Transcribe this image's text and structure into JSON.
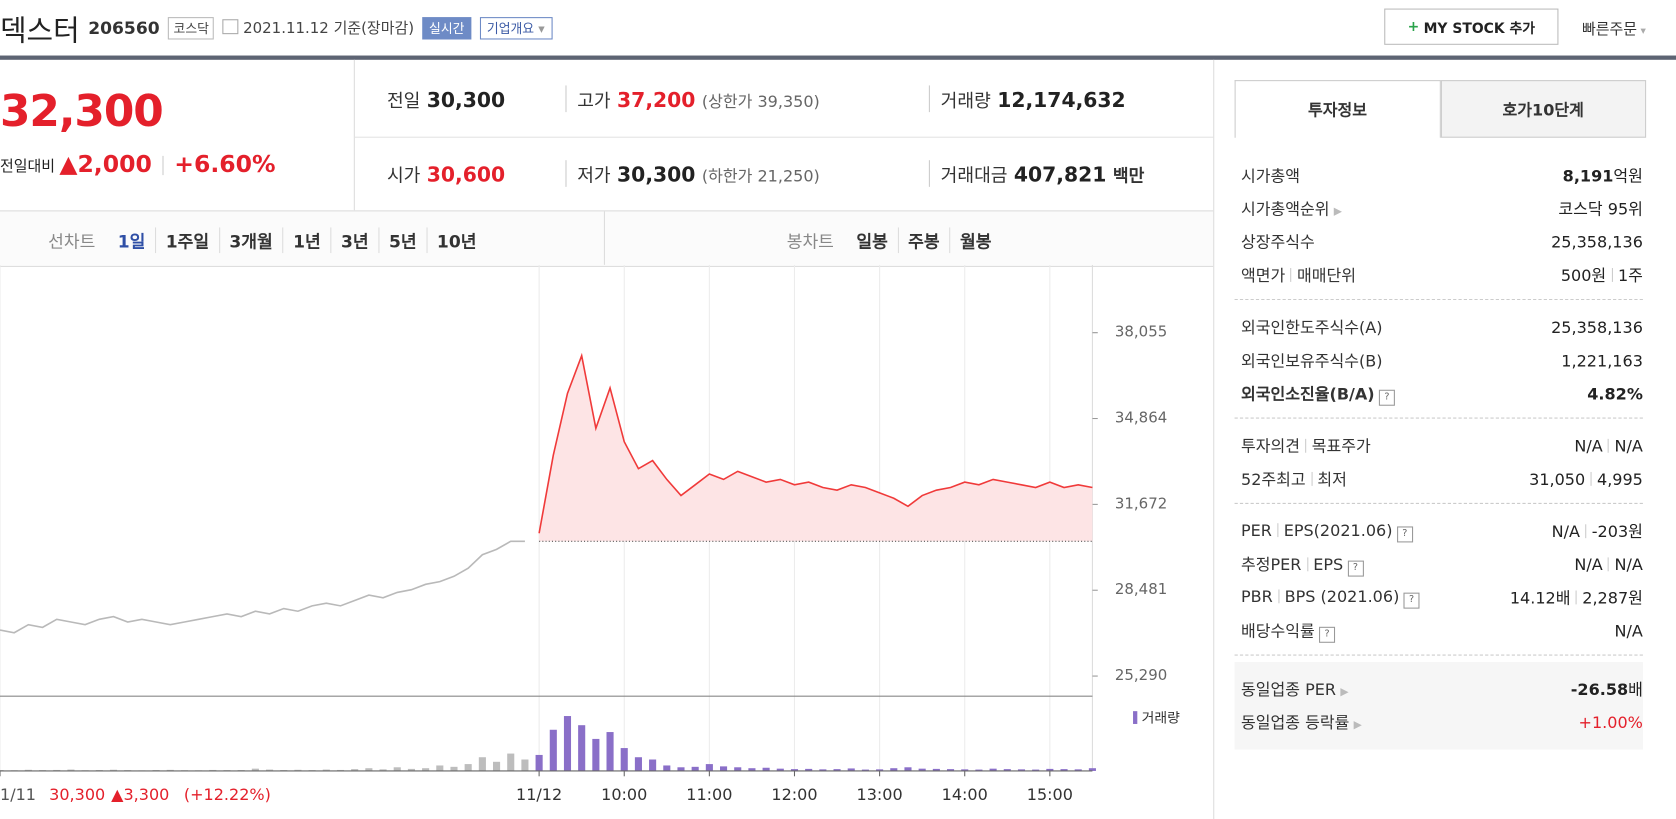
{
  "header": {
    "name": "덱스터",
    "code": "206560",
    "market": "코스닥",
    "date": "2021.11.12 기준(장마감)",
    "realtime": "실시간",
    "company": "기업개요",
    "mystock": "MY STOCK 추가",
    "quick": "빠른주문"
  },
  "price": {
    "current": "32,300",
    "change_label": "전일대비",
    "change": "▲2,000",
    "change_pct": "+6.60%"
  },
  "summary": {
    "items": [
      {
        "label": "전일",
        "value": "30,300"
      },
      {
        "label": "고가",
        "value": "37,200",
        "sub": "(상한가 39,350)",
        "color": "#e4202b"
      },
      {
        "label": "거래량",
        "value": "12,174,632"
      },
      {
        "label": "시가",
        "value": "30,600",
        "color": "#e4202b"
      },
      {
        "label": "저가",
        "value": "30,300",
        "sub": "(하한가 21,250)"
      },
      {
        "label": "거래대금",
        "value": "407,821",
        "unit": "백만"
      }
    ]
  },
  "tabs": {
    "line_label": "선차트",
    "periods": [
      "1일",
      "1주일",
      "3개월",
      "1년",
      "3년",
      "5년",
      "10년"
    ],
    "candle_label": "봉차트",
    "candles": [
      "일봉",
      "주봉",
      "월봉"
    ]
  },
  "chart": {
    "type": "line",
    "categories": [
      "1/11",
      null,
      null,
      null,
      null,
      null,
      null,
      null,
      null,
      null,
      null,
      null,
      null,
      null,
      null,
      null,
      null,
      null,
      null,
      null,
      null,
      null,
      null,
      null,
      null,
      null,
      null,
      null,
      null,
      null,
      null,
      null,
      null,
      null,
      null,
      null,
      null,
      null,
      "11/12",
      null,
      null,
      null,
      null,
      null,
      "10:00",
      null,
      null,
      null,
      null,
      null,
      "11:00",
      null,
      null,
      null,
      null,
      null,
      "12:00",
      null,
      null,
      null,
      null,
      null,
      "13:00",
      null,
      null,
      null,
      null,
      null,
      "14:00",
      null,
      null,
      null,
      null,
      null,
      "15:00",
      null,
      null,
      null
    ],
    "series": [
      {
        "color": "#b9b9b9",
        "values": [
          27000,
          26900,
          27200,
          27100,
          27400,
          27300,
          27200,
          27400,
          27500,
          27300,
          27400,
          27300,
          27200,
          27300,
          27400,
          27500,
          27600,
          27500,
          27700,
          27600,
          27800,
          27700,
          27900,
          28000,
          27900,
          28100,
          28300,
          28200,
          28400,
          28500,
          28700,
          28800,
          29000,
          29300,
          29800,
          30000,
          30300,
          30300,
          null,
          null,
          null,
          null,
          null,
          null,
          null,
          null,
          null,
          null,
          null,
          null,
          null,
          null,
          null,
          null,
          null,
          null,
          null,
          null,
          null,
          null,
          null,
          null,
          null,
          null,
          null,
          null,
          null,
          null,
          null,
          null,
          null,
          null,
          null,
          null,
          null,
          null,
          null,
          null
        ]
      },
      {
        "color": "#f03a3a",
        "values": [
          null,
          null,
          null,
          null,
          null,
          null,
          null,
          null,
          null,
          null,
          null,
          null,
          null,
          null,
          null,
          null,
          null,
          null,
          null,
          null,
          null,
          null,
          null,
          null,
          null,
          null,
          null,
          null,
          null,
          null,
          null,
          null,
          null,
          null,
          null,
          null,
          null,
          null,
          30600,
          33500,
          35800,
          37200,
          34500,
          36000,
          34000,
          33000,
          33300,
          32600,
          32000,
          32400,
          32800,
          32600,
          32900,
          32700,
          32500,
          32600,
          32400,
          32500,
          32300,
          32200,
          32400,
          32300,
          32100,
          31900,
          31600,
          32000,
          32200,
          32300,
          32500,
          32400,
          32600,
          32500,
          32400,
          32300,
          32500,
          32300,
          32400,
          32300
        ]
      }
    ],
    "base": 30300,
    "ylim": [
      24700,
      40300
    ],
    "yticks": [
      {
        "value": 38055,
        "label": "38,055"
      },
      {
        "value": 34864,
        "label": "34,864"
      },
      {
        "value": 31672,
        "label": "31,672"
      },
      {
        "value": 28481,
        "label": "28,481"
      },
      {
        "value": 25290,
        "label": "25,290"
      }
    ],
    "volume": {
      "name": "거래량",
      "color": "#8a6fc8",
      "ylim": [
        0,
        1400000
      ],
      "values": [
        20000,
        15000,
        25000,
        18000,
        22000,
        30000,
        15000,
        20000,
        26000,
        18000,
        12000,
        20000,
        24000,
        16000,
        14000,
        22000,
        18000,
        20000,
        50000,
        30000,
        20000,
        25000,
        18000,
        30000,
        22000,
        40000,
        60000,
        35000,
        80000,
        45000,
        60000,
        120000,
        90000,
        150000,
        300000,
        200000,
        380000,
        250000,
        350000,
        900000,
        1200000,
        1000000,
        700000,
        850000,
        500000,
        300000,
        250000,
        120000,
        80000,
        90000,
        150000,
        100000,
        80000,
        60000,
        70000,
        50000,
        40000,
        45000,
        35000,
        40000,
        55000,
        30000,
        35000,
        60000,
        80000,
        50000,
        45000,
        40000,
        35000,
        30000,
        50000,
        40000,
        35000,
        30000,
        45000,
        40000,
        35000,
        60000
      ]
    },
    "prev_day": {
      "close": "30,300",
      "change": "▲3,300",
      "pct": "(+12.22%)"
    }
  },
  "invest": {
    "tabs": [
      "투자정보",
      "호가10단계"
    ],
    "groups": [
      [
        {
          "label": [
            "시가총액"
          ],
          "value": [
            "8,191"
          ],
          "unit": "억원"
        },
        {
          "label": [
            "시가총액순위"
          ],
          "value": [
            "코스닥 95위"
          ]
        },
        {
          "label": [
            "상장주식수"
          ],
          "value": [
            "25,358,136"
          ]
        },
        {
          "label": [
            "액면가",
            "매매단위"
          ],
          "value": [
            "500원",
            "1주"
          ]
        }
      ],
      [
        {
          "label": [
            "외국인한도주식수(A)"
          ],
          "value": [
            "25,358,136"
          ]
        },
        {
          "label": [
            "외국인보유주식수(B)"
          ],
          "value": [
            "1,221,163"
          ]
        },
        {
          "label": [
            "외국인소진율(B/A)"
          ],
          "value": [
            "4.82%"
          ]
        }
      ],
      [
        {
          "label": [
            "투자의견",
            "목표주가"
          ],
          "value": [
            "N/A",
            "N/A"
          ]
        },
        {
          "label": [
            "52주최고",
            "최저"
          ],
          "value": [
            "31,050",
            "4,995"
          ]
        }
      ],
      [
        {
          "label": [
            "PER",
            "EPS(2021.06)"
          ],
          "value": [
            "N/A",
            "-203원"
          ]
        },
        {
          "label": [
            "추정PER",
            "EPS"
          ],
          "value": [
            "N/A",
            "N/A"
          ]
        },
        {
          "label": [
            "PBR",
            "BPS (2021.06)"
          ],
          "value": [
            "14.12배",
            "2,287원"
          ]
        },
        {
          "label": [
            "배당수익률"
          ],
          "value": [
            "N/A"
          ]
        }
      ],
      [
        {
          "label": [
            "동일업종 PER"
          ],
          "value": [
            "-26.58"
          ],
          "unit": "배"
        },
        {
          "label": [
            "동일업종 등락률"
          ],
          "value": [
            "+1.00%"
          ]
        }
      ]
    ]
  }
}
